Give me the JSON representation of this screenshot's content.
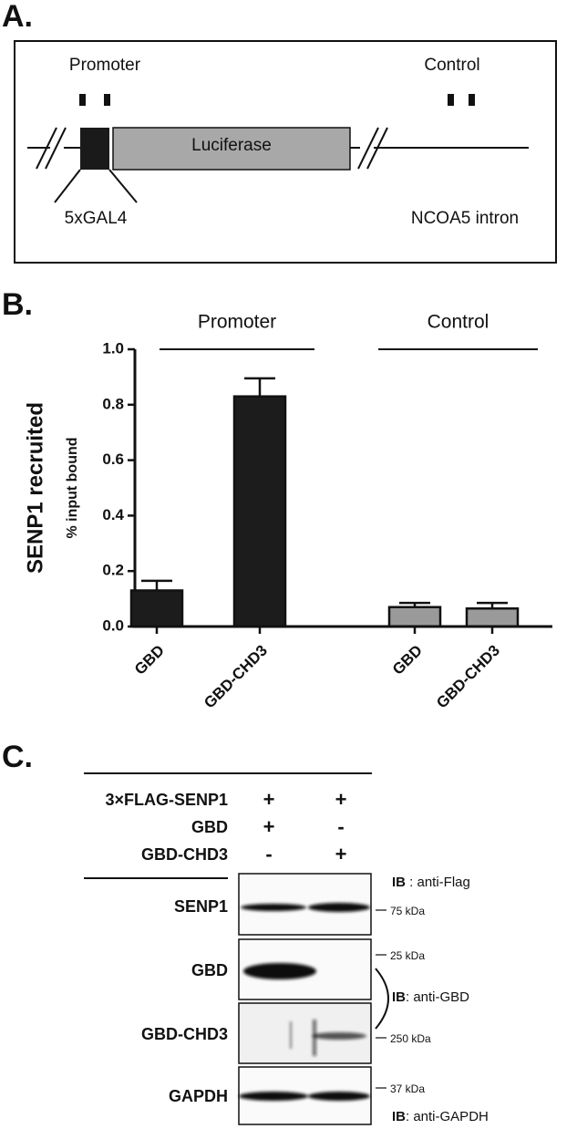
{
  "panel_a": {
    "label": "A.",
    "promoter": "Promoter",
    "control": "Control",
    "reporter": "Luciferase",
    "gal4": "5xGAL4",
    "intron": "NCOA5 intron"
  },
  "chart_data": {
    "type": "bar",
    "panel_label": "B.",
    "ylabel": "SENP1 recruited",
    "ylabel2": "% input bound",
    "series": [
      {
        "name": "Promoter",
        "color": "#1c1c1c",
        "categories": [
          "GBD",
          "GBD-CHD3"
        ],
        "values": [
          0.13,
          0.83
        ],
        "errors": [
          0.035,
          0.065
        ]
      },
      {
        "name": "Control",
        "color": "#9a9a9a",
        "categories": [
          "GBD",
          "GBD-CHD3"
        ],
        "values": [
          0.07,
          0.065
        ],
        "errors": [
          0.015,
          0.02
        ]
      }
    ],
    "ylim": [
      0,
      1.0
    ],
    "yticks": [
      {
        "value": 0,
        "label": "0.0"
      },
      {
        "value": 0.2,
        "label": "0.2"
      },
      {
        "value": 0.4,
        "label": "0.4"
      },
      {
        "value": 0.6,
        "label": "0.6"
      },
      {
        "value": 0.8,
        "label": "0.8"
      },
      {
        "value": 1.0,
        "label": "1.0"
      }
    ]
  },
  "panel_c": {
    "label": "C.",
    "conditions": [
      {
        "name": "3×FLAG-SENP1",
        "lanes": [
          "+",
          "+"
        ]
      },
      {
        "name": "GBD",
        "lanes": [
          "+",
          "-"
        ]
      },
      {
        "name": "GBD-CHD3",
        "lanes": [
          "-",
          "+"
        ]
      }
    ],
    "blots": [
      "SENP1",
      "GBD",
      "GBD-CHD3",
      "GAPDH"
    ],
    "markers": [
      "75 kDa",
      "25 kDa",
      "250 kDa",
      "37 kDa"
    ],
    "ib": [
      {
        "prefix": "IB",
        "text": " : anti-Flag"
      },
      {
        "prefix": "IB",
        "text": ": anti-GBD"
      },
      {
        "prefix": "IB",
        "text": ": anti-GAPDH"
      }
    ]
  }
}
